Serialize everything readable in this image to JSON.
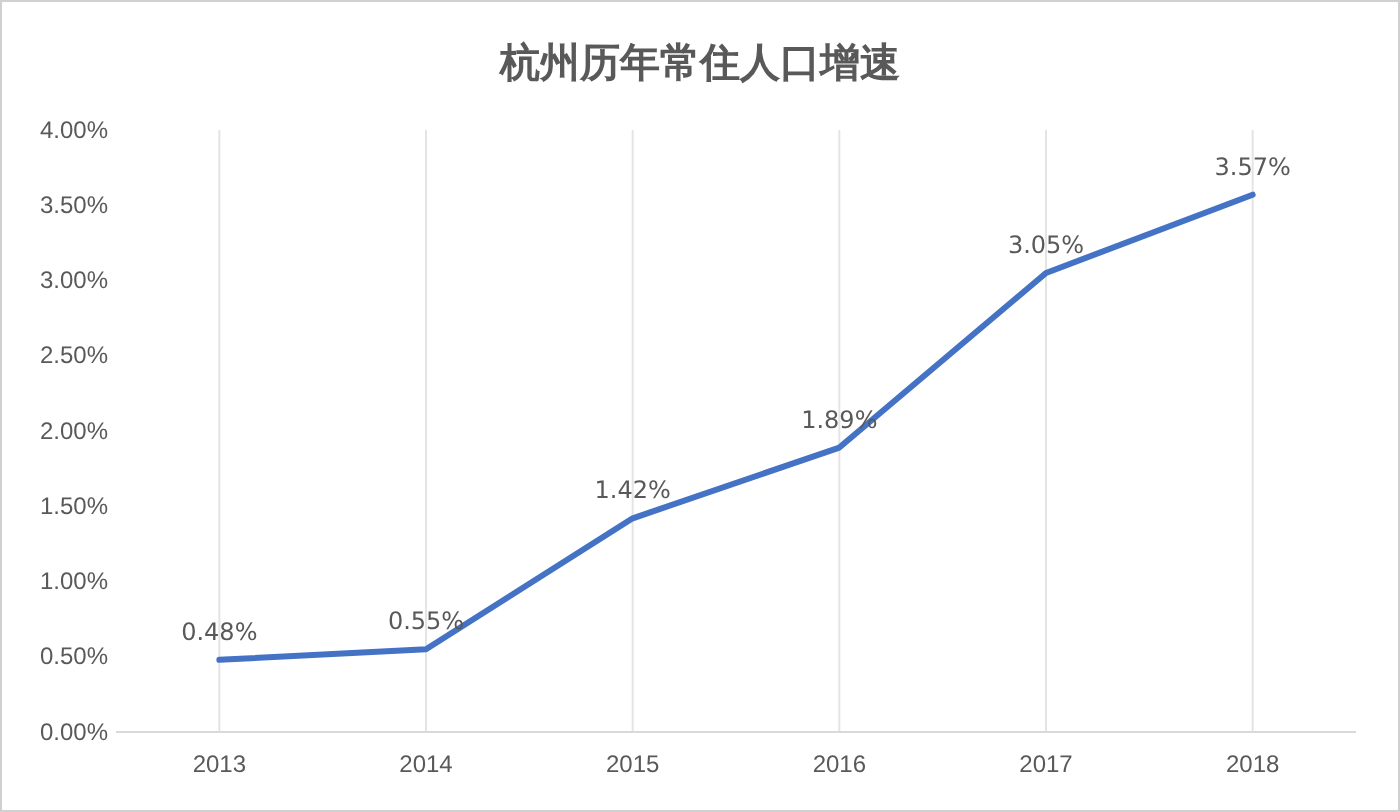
{
  "chart_data": {
    "type": "line",
    "title": "杭州历年常住人口增速",
    "categories": [
      "2013",
      "2014",
      "2015",
      "2016",
      "2017",
      "2018"
    ],
    "series": [
      {
        "color": "#4472c4",
        "values": [
          0.48,
          0.55,
          1.42,
          1.89,
          3.05,
          3.57
        ],
        "value_labels": [
          "0.48%",
          "0.55%",
          "1.42%",
          "1.89%",
          "3.05%",
          "3.57%"
        ]
      }
    ],
    "ylim": [
      0,
      4
    ],
    "yticks": [
      {
        "value": 0,
        "label": "0.00%"
      },
      {
        "value": 0.5,
        "label": "0.50%"
      },
      {
        "value": 1,
        "label": "1.00%"
      },
      {
        "value": 1.5,
        "label": "1.50%"
      },
      {
        "value": 2,
        "label": "2.00%"
      },
      {
        "value": 2.5,
        "label": "2.50%"
      },
      {
        "value": 3,
        "label": "3.00%"
      },
      {
        "value": 3.5,
        "label": "3.50%"
      },
      {
        "value": 4,
        "label": "4.00%"
      }
    ],
    "grid": "x",
    "marker": "none",
    "line_style": "solid"
  }
}
